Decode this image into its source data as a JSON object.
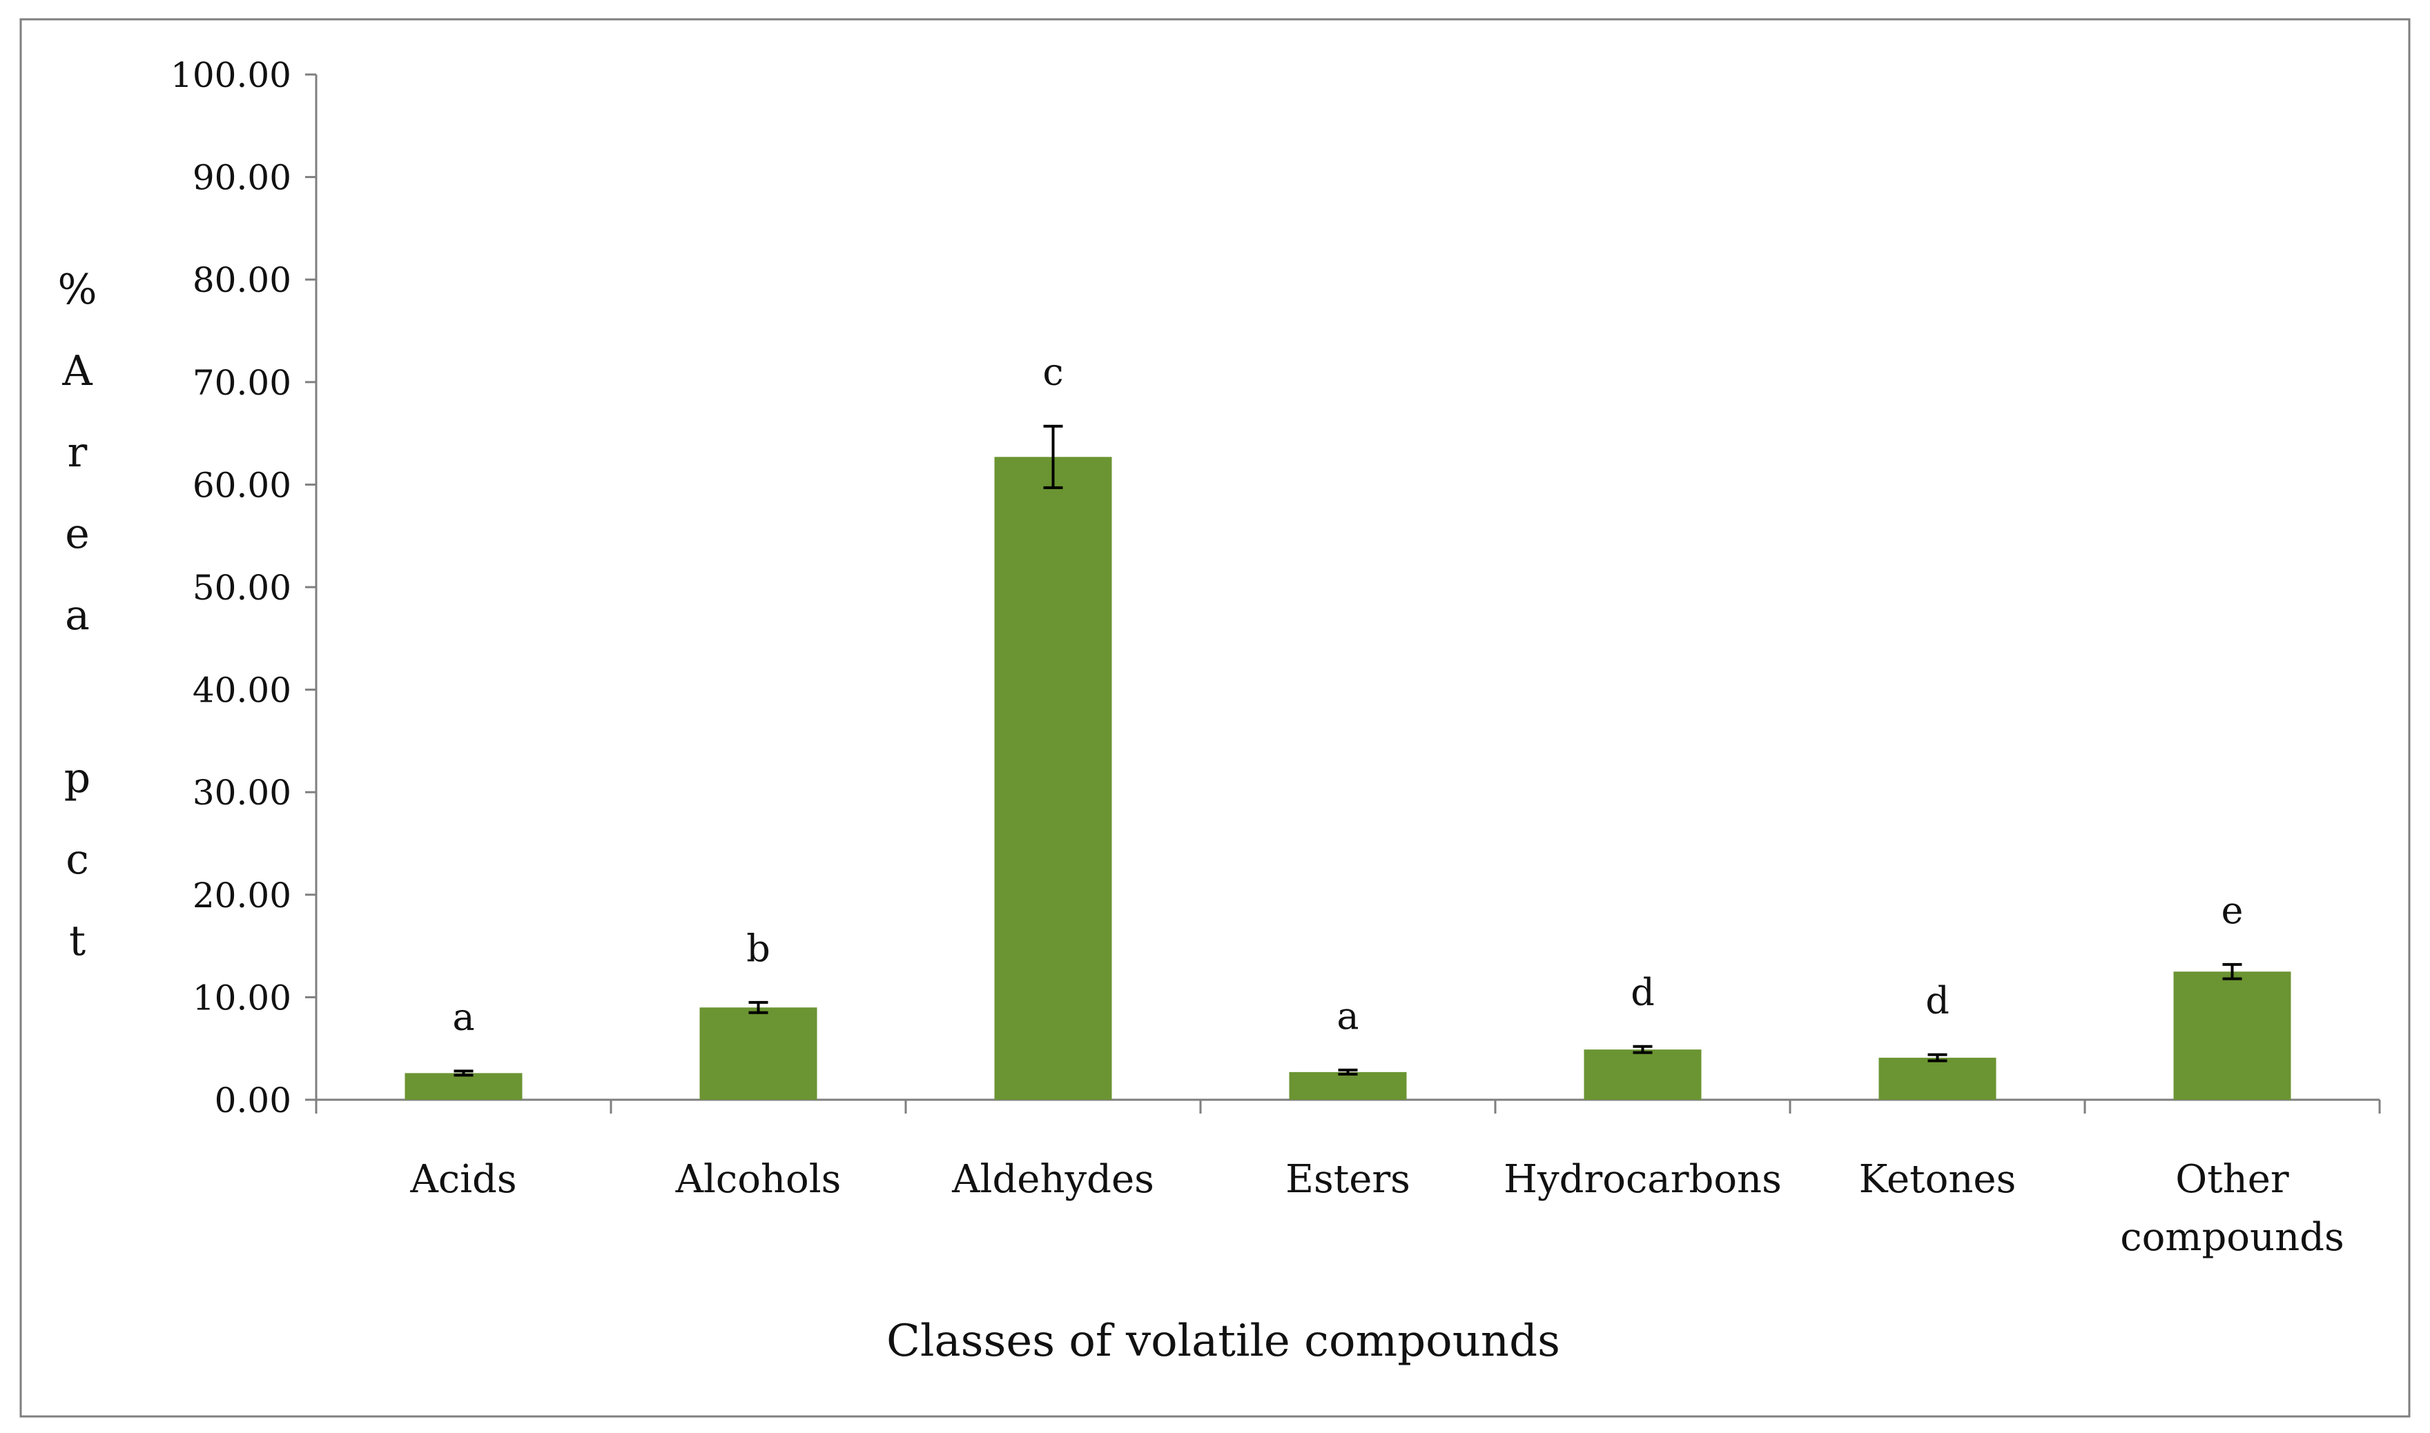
{
  "chart_data": {
    "type": "bar",
    "xlabel": "Classes of volatile compounds",
    "ylabel_letters": [
      "%",
      "A",
      "r",
      "e",
      "a",
      "",
      "p",
      "c",
      "t"
    ],
    "categories": [
      [
        "Acids"
      ],
      [
        "Alcohols"
      ],
      [
        "Aldehydes"
      ],
      [
        "Esters"
      ],
      [
        "Hydrocarbons"
      ],
      [
        "Ketones"
      ],
      [
        "Other",
        "compounds"
      ]
    ],
    "values": [
      2.6,
      9.0,
      62.7,
      2.7,
      4.9,
      4.1,
      12.5
    ],
    "errors": [
      0.2,
      0.5,
      3.0,
      0.2,
      0.3,
      0.3,
      0.7
    ],
    "significance_letters": [
      "a",
      "b",
      "c",
      "a",
      "d",
      "d",
      "e"
    ],
    "ylim": [
      0,
      100
    ],
    "yticks": [
      "0.00",
      "10.00",
      "20.00",
      "30.00",
      "40.00",
      "50.00",
      "60.00",
      "70.00",
      "80.00",
      "90.00",
      "100.00"
    ],
    "bar_color": "#6b9432",
    "grid": false,
    "legend": "none"
  }
}
